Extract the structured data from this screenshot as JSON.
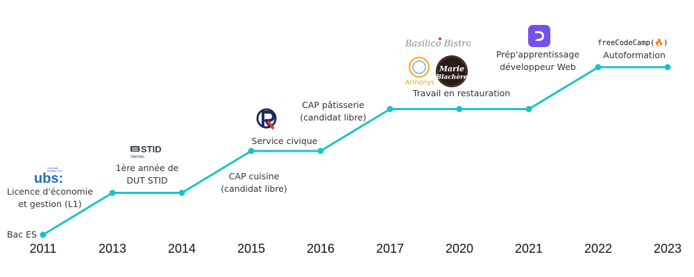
{
  "timeline": {
    "line_color": "#19c3c9",
    "years": [
      "2011",
      "2013",
      "2014",
      "2015",
      "2016",
      "2017",
      "2020",
      "2021",
      "2022",
      "2023"
    ],
    "levels": [
      0,
      1,
      1,
      2,
      2,
      3,
      3,
      3,
      4,
      4
    ],
    "events": [
      {
        "lines": [
          "Bac ES"
        ]
      },
      {
        "lines": [
          "Licence d'économie",
          "et gestion (L1)"
        ]
      },
      {
        "lines": [
          "1ère année de",
          "DUT STID"
        ]
      },
      {
        "lines": [
          "CAP cuisine",
          "(candidat libre)"
        ]
      },
      {
        "lines": [
          "Service civique"
        ]
      },
      {
        "lines": [
          "CAP pâtisserie",
          "(candidat libre)"
        ]
      },
      {
        "lines": [
          "Travail en restauration"
        ]
      },
      {
        "lines": [
          "Prép'apprentissage",
          "développeur Web"
        ]
      },
      {
        "lines": [
          "Autoformation"
        ]
      }
    ],
    "logos": {
      "ubs": "ubs:",
      "ubs_small": [
        "Université",
        "Bretagne Sud"
      ],
      "stid": "STID",
      "stid_sub": "Vannes",
      "basilico": "Basilico Bistro",
      "armonys": "Armonys",
      "marie": [
        "Marie",
        "Blachère"
      ],
      "fcc": "freeCodeCamp(🔥)"
    }
  }
}
